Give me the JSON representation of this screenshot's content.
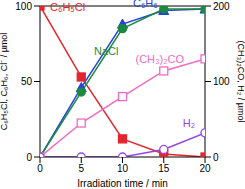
{
  "chart_data": {
    "type": "line",
    "x_label": "Irradiation time / min",
    "y_label": "C₆H₅Cl, C₆H₆, Cl⁻ / µmol",
    "y2_label": "(CH₃)₂CO, H₂ / µmol",
    "x": [
      0,
      5,
      10,
      15,
      20
    ],
    "xlim": [
      0,
      20
    ],
    "xticks": [
      0,
      5,
      10,
      15,
      20
    ],
    "ylim": [
      0,
      100
    ],
    "yticks": [
      0,
      50,
      100
    ],
    "y2lim": [
      0,
      200
    ],
    "y2ticks": [
      0,
      100,
      200
    ],
    "grid": false,
    "series": [
      {
        "name": "C₆H₅Cl",
        "color": "#e3262d",
        "marker": "square",
        "values": [
          100,
          53,
          12,
          2,
          0
        ]
      },
      {
        "name": "C₆H₆",
        "color": "#2343d9",
        "marker": "triangle",
        "values": [
          0,
          46,
          88,
          97,
          98
        ]
      },
      {
        "name": "NaCl",
        "color": "#1b8a3e",
        "marker": "circle",
        "values": [
          0,
          43,
          85,
          98,
          98
        ]
      },
      {
        "name": "(CH₃)₂CO",
        "color": "#ee6cc4",
        "marker": "open_square",
        "axis": "y2",
        "values": [
          0,
          45,
          80,
          114,
          130
        ]
      },
      {
        "name": "H₂",
        "color": "#9447e3",
        "marker": "open_circle",
        "axis": "y2",
        "values": [
          0,
          0,
          0,
          10,
          32
        ]
      }
    ]
  }
}
